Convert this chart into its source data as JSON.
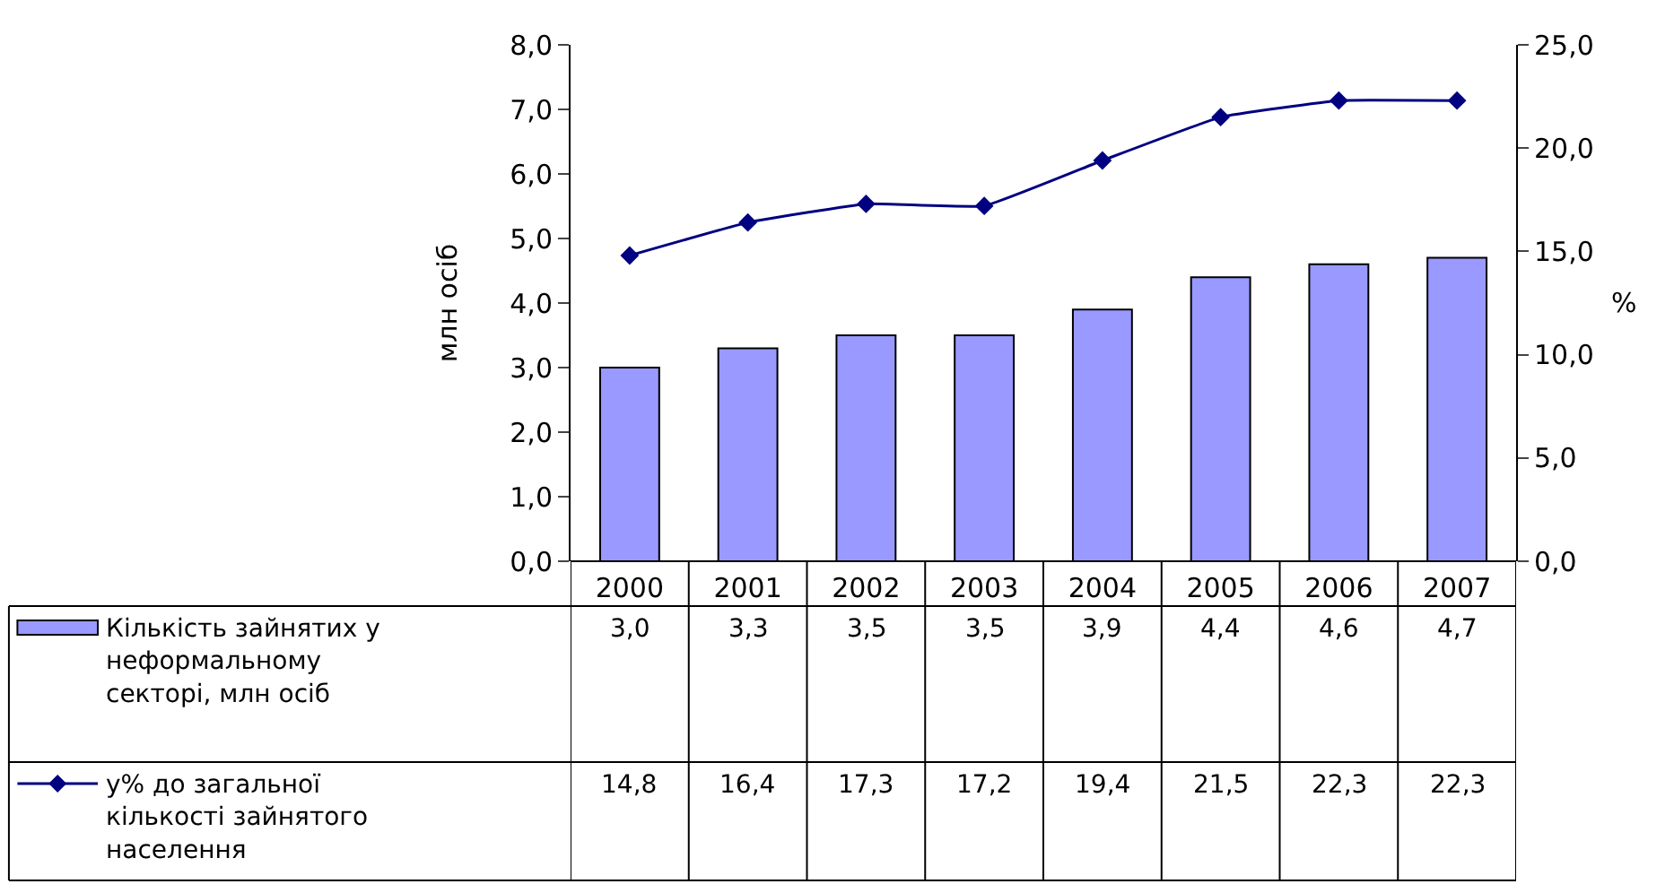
{
  "chart_data": {
    "type": "bar",
    "ylabel": "млн осіб",
    "y2label": "%",
    "categories": [
      "2000",
      "2001",
      "2002",
      "2003",
      "2004",
      "2005",
      "2006",
      "2007"
    ],
    "series": [
      {
        "name": "Кількість зайнятих у неформальному секторі, млн осіб",
        "color": "#9999ff",
        "values": [
          3.0,
          3.3,
          3.5,
          3.5,
          3.9,
          4.4,
          4.6,
          4.7
        ],
        "value_labels": [
          "3,0",
          "3,3",
          "3,5",
          "3,5",
          "3,9",
          "4,4",
          "4,6",
          "4,7"
        ]
      },
      {
        "name": "у% до загальної кількості зайнятого населення",
        "type": "line",
        "axis": "y2",
        "color": "#000080",
        "marker": "diamond",
        "values": [
          14.8,
          16.4,
          17.3,
          17.2,
          19.4,
          21.5,
          22.3,
          22.3
        ],
        "value_labels": [
          "14,8",
          "16,4",
          "17,3",
          "17,2",
          "19,4",
          "21,5",
          "22,3",
          "22,3"
        ]
      }
    ],
    "ylim": [
      0,
      8
    ],
    "yticks": [
      {
        "value": 0,
        "label": "0,0"
      },
      {
        "value": 1,
        "label": "1,0"
      },
      {
        "value": 2,
        "label": "2,0"
      },
      {
        "value": 3,
        "label": "3,0"
      },
      {
        "value": 4,
        "label": "4,0"
      },
      {
        "value": 5,
        "label": "5,0"
      },
      {
        "value": 6,
        "label": "6,0"
      },
      {
        "value": 7,
        "label": "7,0"
      },
      {
        "value": 8,
        "label": "8,0"
      }
    ],
    "y2lim": [
      0,
      25
    ],
    "y2ticks": [
      {
        "value": 0,
        "label": "0,0"
      },
      {
        "value": 5,
        "label": "5,0"
      },
      {
        "value": 10,
        "label": "10,0"
      },
      {
        "value": 15,
        "label": "15,0"
      },
      {
        "value": 20,
        "label": "20,0"
      },
      {
        "value": 25,
        "label": "25,0"
      }
    ],
    "legend": "bottom left"
  }
}
